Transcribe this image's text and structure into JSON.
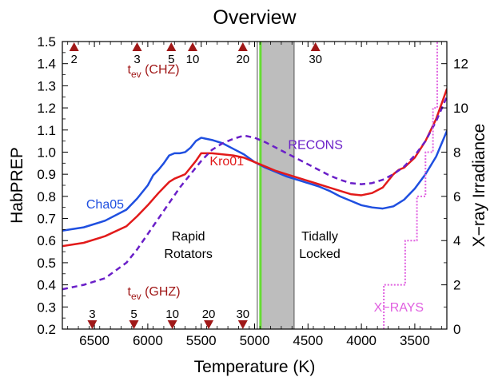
{
  "chart_data": {
    "type": "line",
    "title": "Overview",
    "xlabel": "Temperature (K)",
    "ylabel": "HabPREP",
    "y2label": "X−ray Irradiance",
    "xlim": [
      6800,
      3200
    ],
    "ylim": [
      0.2,
      1.5
    ],
    "y2lim": [
      0,
      13
    ],
    "x_ticks": [
      6500,
      6000,
      5500,
      5000,
      4500,
      4000,
      3500
    ],
    "y_ticks": [
      0.2,
      0.3,
      0.4,
      0.5,
      0.6,
      0.7,
      0.8,
      0.9,
      1.0,
      1.1,
      1.2,
      1.3,
      1.4,
      1.5
    ],
    "y_tick_labels": [
      "0.2",
      "0.3",
      "0.4",
      "0.5",
      "0.6",
      "0.7",
      "0.8",
      "0.9",
      "1.0",
      "1.1",
      "1.2",
      "1.3",
      "1.4",
      "1.5"
    ],
    "y2_ticks": [
      0,
      2,
      4,
      6,
      8,
      10,
      12
    ],
    "series": [
      {
        "name": "Cha05",
        "color": "#1f4fe0",
        "style": "solid",
        "axis": "left",
        "x": [
          6800,
          6600,
          6400,
          6200,
          6100,
          6000,
          5950,
          5900,
          5850,
          5800,
          5750,
          5700,
          5650,
          5600,
          5550,
          5500,
          5450,
          5400,
          5300,
          5200,
          5100,
          5000,
          4900,
          4800,
          4700,
          4600,
          4500,
          4400,
          4300,
          4200,
          4100,
          4000,
          3900,
          3800,
          3700,
          3600,
          3500,
          3400,
          3300,
          3200
        ],
        "y": [
          0.645,
          0.66,
          0.69,
          0.74,
          0.79,
          0.85,
          0.895,
          0.92,
          0.95,
          0.985,
          0.995,
          0.995,
          1.0,
          1.02,
          1.05,
          1.065,
          1.06,
          1.055,
          1.04,
          1.015,
          0.99,
          0.955,
          0.93,
          0.91,
          0.89,
          0.875,
          0.86,
          0.845,
          0.825,
          0.8,
          0.78,
          0.76,
          0.75,
          0.745,
          0.755,
          0.785,
          0.835,
          0.9,
          0.98,
          1.095
        ]
      },
      {
        "name": "Kro01",
        "color": "#e21a1a",
        "style": "solid",
        "axis": "left",
        "x": [
          6800,
          6600,
          6400,
          6200,
          6100,
          6000,
          5900,
          5850,
          5800,
          5750,
          5700,
          5650,
          5600,
          5550,
          5500,
          5400,
          5300,
          5200,
          5100,
          5000,
          4900,
          4800,
          4700,
          4600,
          4500,
          4400,
          4300,
          4200,
          4100,
          4000,
          3900,
          3800,
          3700,
          3650,
          3600,
          3500,
          3400,
          3300,
          3200
        ],
        "y": [
          0.575,
          0.59,
          0.62,
          0.665,
          0.71,
          0.76,
          0.815,
          0.84,
          0.865,
          0.88,
          0.89,
          0.9,
          0.93,
          0.96,
          0.995,
          0.995,
          0.99,
          0.985,
          0.975,
          0.955,
          0.935,
          0.915,
          0.9,
          0.885,
          0.87,
          0.855,
          0.84,
          0.825,
          0.81,
          0.805,
          0.815,
          0.84,
          0.9,
          0.92,
          0.93,
          0.975,
          1.05,
          1.15,
          1.285
        ]
      },
      {
        "name": "RECONS",
        "color": "#6a1fc8",
        "style": "dashed",
        "axis": "left",
        "x": [
          6800,
          6600,
          6400,
          6200,
          6100,
          6000,
          5900,
          5800,
          5700,
          5600,
          5500,
          5400,
          5300,
          5200,
          5100,
          5000,
          4900,
          4800,
          4700,
          4600,
          4500,
          4400,
          4300,
          4200,
          4100,
          4000,
          3900,
          3800,
          3700,
          3600,
          3500,
          3400,
          3300,
          3200
        ],
        "y": [
          0.38,
          0.4,
          0.43,
          0.5,
          0.56,
          0.63,
          0.7,
          0.77,
          0.84,
          0.9,
          0.96,
          1.01,
          1.04,
          1.06,
          1.075,
          1.065,
          1.045,
          1.02,
          0.995,
          0.97,
          0.945,
          0.92,
          0.895,
          0.875,
          0.86,
          0.855,
          0.86,
          0.875,
          0.9,
          0.935,
          0.985,
          1.05,
          1.14,
          1.25
        ]
      },
      {
        "name": "X−RAYS",
        "color": "#e060e0",
        "style": "dotted",
        "axis": "right",
        "x": [
          3790,
          3790,
          3590,
          3590,
          3480,
          3480,
          3400,
          3400,
          3330,
          3330,
          3290,
          3290
        ],
        "y": [
          0,
          2,
          2,
          4,
          4,
          6,
          6,
          8,
          8,
          10,
          10,
          13
        ]
      }
    ],
    "shaded_region": {
      "x_from": 4950,
      "x_to": 4630,
      "color": "#bdbdbd"
    },
    "vertical_line_gray": {
      "x": 4975,
      "color": "#8a8a8a"
    },
    "vertical_line_green": {
      "x": 4945,
      "color": "#66dd33"
    },
    "top_markers": {
      "label": "t",
      "subscript": "ev",
      "suffix": " (CHZ)",
      "x": [
        6690,
        6100,
        5780,
        5580,
        5110,
        4430
      ],
      "labels": [
        "2",
        "3",
        "5",
        "10",
        "20",
        "30"
      ]
    },
    "bottom_markers": {
      "label": "t",
      "subscript": "ev",
      "suffix": " (GHZ)",
      "x": [
        6520,
        6130,
        5770,
        5430,
        5110
      ],
      "labels": [
        "3",
        "5",
        "10",
        "20",
        "30"
      ]
    },
    "annotations": [
      {
        "text": "Cha05",
        "x": 6400,
        "y": 0.745,
        "color": "#1f4fe0"
      },
      {
        "text": "Kro01",
        "x": 5260,
        "y": 0.94,
        "color": "#e21a1a"
      },
      {
        "text": "RECONS",
        "x": 4430,
        "y": 1.015,
        "color": "#6a1fc8"
      },
      {
        "text": "X−RAYS",
        "x": 3650,
        "y": 0.28,
        "color": "#e060e0"
      }
    ],
    "region_labels": [
      {
        "lines": [
          "Rapid",
          "Rotators"
        ],
        "x": 5620,
        "y": 0.6
      },
      {
        "lines": [
          "Tidally",
          "Locked"
        ],
        "x": 4390,
        "y": 0.6
      }
    ]
  }
}
